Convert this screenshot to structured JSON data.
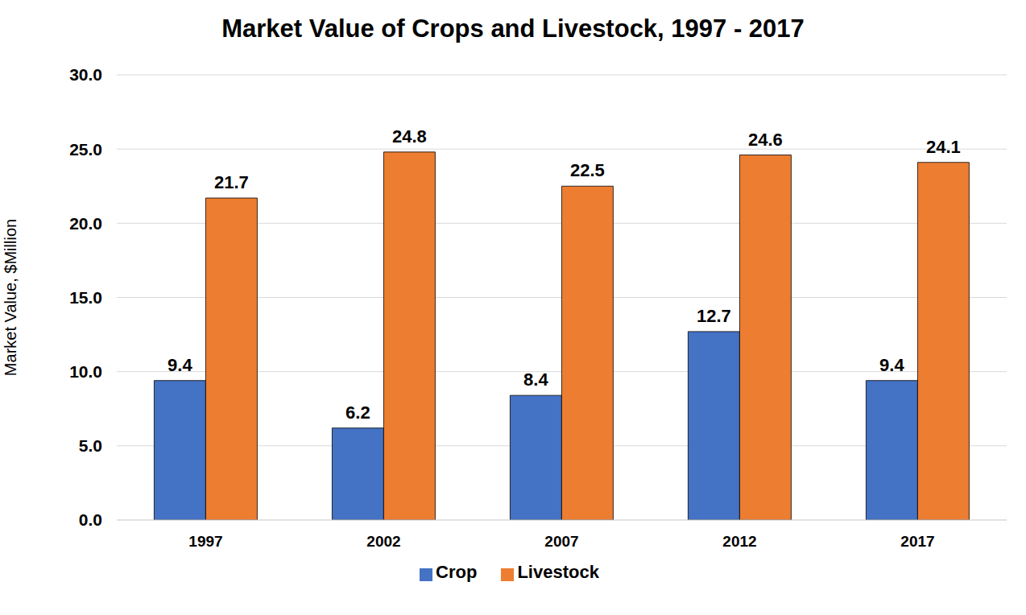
{
  "chart_data": {
    "type": "bar",
    "title": "Market Value of Crops and Livestock, 1997 - 2017",
    "y_label": "Market Value, $Million",
    "categories": [
      "1997",
      "2002",
      "2007",
      "2012",
      "2017"
    ],
    "series": [
      {
        "name": "Crop",
        "color": "#4472c4",
        "values": [
          9.4,
          6.2,
          8.4,
          12.7,
          9.4
        ]
      },
      {
        "name": "Livestock",
        "color": "#ed7d31",
        "values": [
          21.7,
          24.8,
          22.5,
          24.6,
          24.1
        ]
      }
    ],
    "ylim": [
      0,
      30
    ],
    "yticks": [
      {
        "value": 0,
        "label": "0.0"
      },
      {
        "value": 5,
        "label": "5.0"
      },
      {
        "value": 10,
        "label": "10.0"
      },
      {
        "value": 15,
        "label": "15.0"
      },
      {
        "value": 20,
        "label": "20.0"
      },
      {
        "value": 25,
        "label": "25.0"
      },
      {
        "value": 30,
        "label": "30.0"
      }
    ],
    "grid": true,
    "legend": "bottom",
    "data_labels": true
  }
}
